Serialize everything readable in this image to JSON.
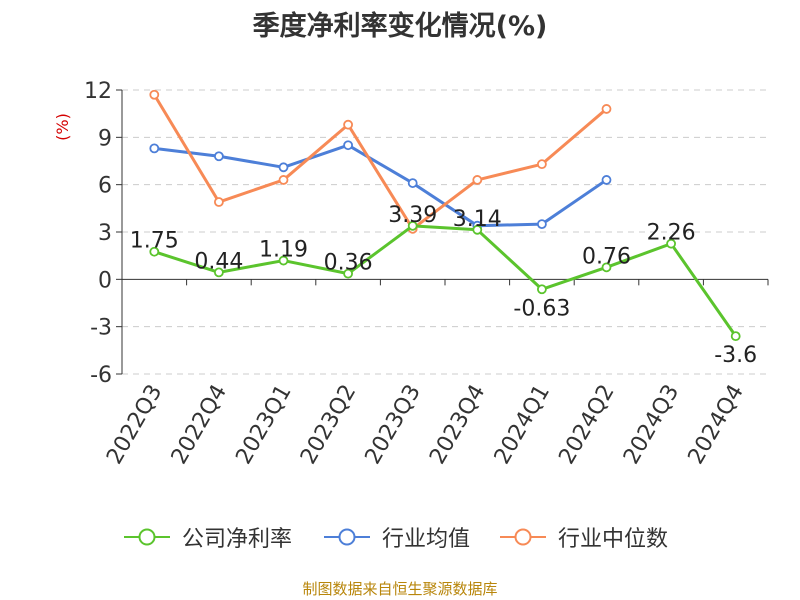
{
  "title": "季度净利率变化情况(%)",
  "source": "制图数据来自恒生聚源数据库",
  "colors": {
    "company": "#5bc42d",
    "industry_avg": "#4d7fd8",
    "industry_median": "#f78a56"
  },
  "chart_data": {
    "type": "line",
    "title": "季度净利率变化情况(%)",
    "ylabel": "(%)",
    "xlabel": "",
    "ylim": [
      -6,
      12
    ],
    "yticks": [
      12,
      9,
      6,
      3,
      0,
      -3,
      -6
    ],
    "grid": true,
    "legend_position": "bottom",
    "categories": [
      "2022Q3",
      "2022Q4",
      "2023Q1",
      "2023Q2",
      "2023Q3",
      "2023Q4",
      "2024Q1",
      "2024Q2",
      "2024Q3",
      "2024Q4"
    ],
    "series": [
      {
        "name": "公司净利率",
        "values": [
          1.75,
          0.44,
          1.19,
          0.36,
          3.39,
          3.14,
          -0.63,
          0.76,
          2.26,
          -3.6
        ],
        "labels": [
          "1.75",
          "0.44",
          "1.19",
          "0.36",
          "3.39",
          "3.14",
          "-0.63",
          "0.76",
          "2.26",
          "-3.6"
        ]
      },
      {
        "name": "行业均值",
        "values": [
          8.3,
          7.8,
          7.1,
          8.5,
          6.1,
          3.4,
          3.5,
          6.3,
          null,
          null
        ]
      },
      {
        "name": "行业中位数",
        "values": [
          11.7,
          4.9,
          6.3,
          9.8,
          3.2,
          6.3,
          7.3,
          10.8,
          null,
          null
        ]
      }
    ]
  }
}
